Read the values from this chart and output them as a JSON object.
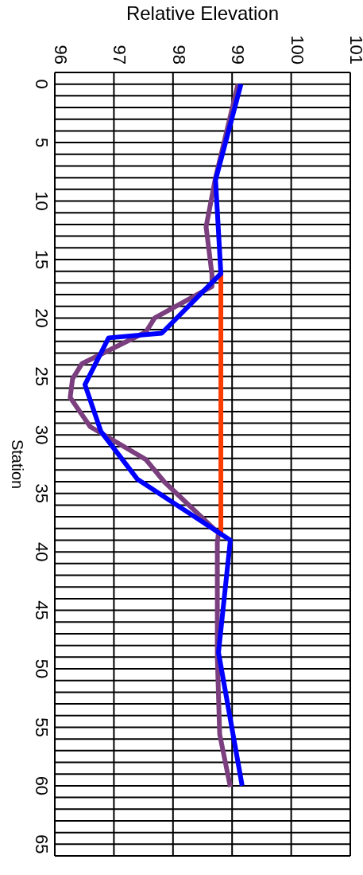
{
  "chart_data": {
    "type": "line",
    "xlabel": "Relative Elevation",
    "ylabel": "Station",
    "xlim": [
      96,
      101
    ],
    "xticks": [
      96,
      97,
      98,
      99,
      100,
      101
    ],
    "ylim": [
      66,
      -1
    ],
    "yticks": [
      0,
      {
        "value": 1,
        "label": null
      },
      {
        "value": 2,
        "label": null
      },
      {
        "value": 3,
        "label": null
      },
      {
        "value": 4,
        "label": null
      },
      5,
      {
        "value": 6,
        "label": null
      },
      {
        "value": 7,
        "label": null
      },
      {
        "value": 8,
        "label": null
      },
      {
        "value": 9,
        "label": null
      },
      10,
      {
        "value": 11,
        "label": null
      },
      {
        "value": 12,
        "label": null
      },
      {
        "value": 13,
        "label": null
      },
      {
        "value": 14,
        "label": null
      },
      15,
      {
        "value": 16,
        "label": null
      },
      {
        "value": 17,
        "label": null
      },
      {
        "value": 18,
        "label": null
      },
      {
        "value": 19,
        "label": null
      },
      20,
      {
        "value": 21,
        "label": null
      },
      {
        "value": 22,
        "label": null
      },
      {
        "value": 23,
        "label": null
      },
      {
        "value": 24,
        "label": null
      },
      25,
      {
        "value": 26,
        "label": null
      },
      {
        "value": 27,
        "label": null
      },
      {
        "value": 28,
        "label": null
      },
      {
        "value": 29,
        "label": null
      },
      30,
      {
        "value": 31,
        "label": null
      },
      {
        "value": 32,
        "label": null
      },
      {
        "value": 33,
        "label": null
      },
      {
        "value": 34,
        "label": null
      },
      35,
      {
        "value": 36,
        "label": null
      },
      {
        "value": 37,
        "label": null
      },
      {
        "value": 38,
        "label": null
      },
      {
        "value": 39,
        "label": null
      },
      40,
      {
        "value": 41,
        "label": null
      },
      {
        "value": 42,
        "label": null
      },
      {
        "value": 43,
        "label": null
      },
      {
        "value": 44,
        "label": null
      },
      45,
      {
        "value": 46,
        "label": null
      },
      {
        "value": 47,
        "label": null
      },
      {
        "value": 48,
        "label": null
      },
      {
        "value": 49,
        "label": null
      },
      50,
      {
        "value": 51,
        "label": null
      },
      {
        "value": 52,
        "label": null
      },
      {
        "value": 53,
        "label": null
      },
      {
        "value": 54,
        "label": null
      },
      55,
      {
        "value": 56,
        "label": null
      },
      {
        "value": 57,
        "label": null
      },
      {
        "value": 58,
        "label": null
      },
      {
        "value": 59,
        "label": null
      },
      60,
      {
        "value": 61,
        "label": null
      },
      {
        "value": 62,
        "label": null
      },
      {
        "value": 63,
        "label": null
      },
      {
        "value": 64,
        "label": null
      },
      65
    ],
    "grid": true,
    "marker": "none",
    "line_style": "solid",
    "series": [
      {
        "color": "#7b3f7f",
        "x": [
          99.1,
          98.72,
          98.56,
          98.66,
          98.66,
          97.69,
          97.54,
          96.46,
          96.3,
          96.26,
          96.6,
          97.54,
          97.85,
          98.77,
          98.75,
          98.75,
          98.79,
          98.97
        ],
        "values": [
          0,
          8,
          12.2,
          16.3,
          17.3,
          20,
          21.2,
          23.9,
          25.2,
          26.8,
          29.3,
          32.1,
          34,
          38.4,
          39.2,
          49,
          55.6,
          60.1
        ]
      },
      {
        "color": "#ff3c00",
        "x": [
          98.81,
          98.81
        ],
        "values": [
          16,
          38.5
        ]
      },
      {
        "color": "#0000ff",
        "x": [
          99.15,
          98.72,
          98.81,
          97.81,
          96.91,
          96.51,
          96.78,
          97.4,
          98.97,
          98.77,
          99.17
        ],
        "values": [
          0,
          8.2,
          16.2,
          21.3,
          21.7,
          25.7,
          29.7,
          33.8,
          39,
          48.6,
          60
        ]
      }
    ]
  }
}
